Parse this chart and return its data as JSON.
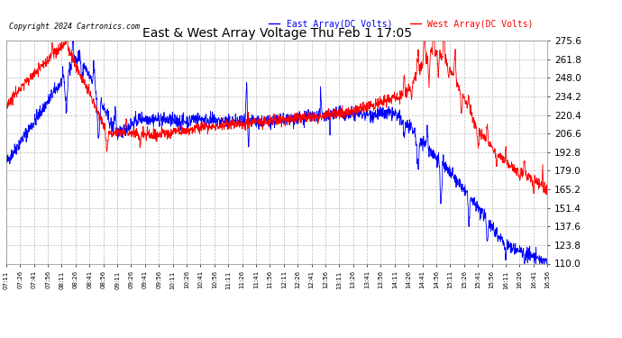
{
  "title": "East & West Array Voltage Thu Feb 1 17:05",
  "copyright": "Copyright 2024 Cartronics.com",
  "legend_east": "East Array(DC Volts)",
  "legend_west": "West Array(DC Volts)",
  "east_color": "blue",
  "west_color": "red",
  "bg_color": "#ffffff",
  "grid_color": "#bbbbbb",
  "ylim": [
    110.0,
    275.6
  ],
  "yticks": [
    110.0,
    123.8,
    137.6,
    151.4,
    165.2,
    179.0,
    192.8,
    206.6,
    220.4,
    234.2,
    248.0,
    261.8,
    275.6
  ],
  "xtick_labels": [
    "07:11",
    "07:26",
    "07:41",
    "07:56",
    "08:11",
    "08:26",
    "08:41",
    "08:56",
    "09:11",
    "09:26",
    "09:41",
    "09:56",
    "10:11",
    "10:26",
    "10:41",
    "10:56",
    "11:11",
    "11:26",
    "11:41",
    "11:56",
    "12:11",
    "12:26",
    "12:41",
    "12:56",
    "13:11",
    "13:26",
    "13:41",
    "13:56",
    "14:11",
    "14:26",
    "14:41",
    "14:56",
    "15:11",
    "15:26",
    "15:41",
    "15:56",
    "16:11",
    "16:26",
    "16:41",
    "16:56"
  ],
  "total_minutes": 585,
  "n_points": 2000
}
